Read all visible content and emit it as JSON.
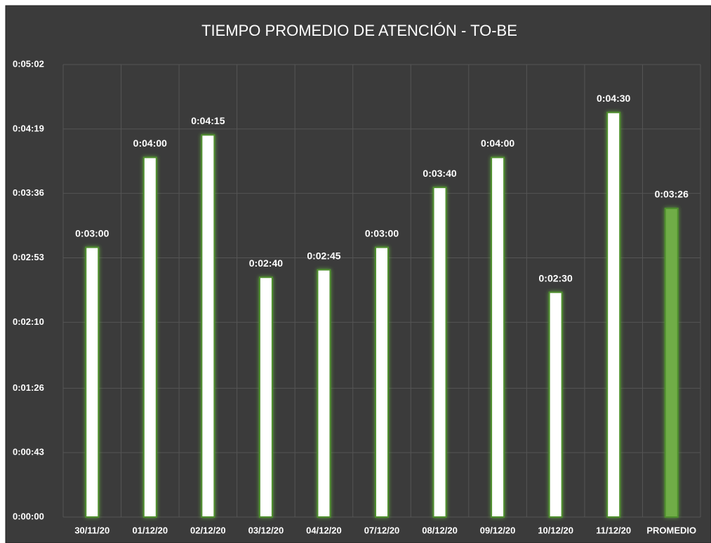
{
  "chart_data": {
    "type": "bar",
    "title": "TIEMPO PROMEDIO DE ATENCIÓN -  TO-BE",
    "categories": [
      "30/11/20",
      "01/12/20",
      "02/12/20",
      "03/12/20",
      "04/12/20",
      "07/12/20",
      "08/12/20",
      "09/12/20",
      "10/12/20",
      "11/12/20",
      "PROMEDIO"
    ],
    "values": [
      180,
      240,
      255,
      160,
      165,
      180,
      220,
      240,
      150,
      270,
      206
    ],
    "value_labels": [
      "0:03:00",
      "0:04:00",
      "0:04:15",
      "0:02:40",
      "0:02:45",
      "0:03:00",
      "0:03:40",
      "0:04:00",
      "0:02:30",
      "0:04:30",
      "0:03:26"
    ],
    "colors": [
      "#ffffff",
      "#ffffff",
      "#ffffff",
      "#ffffff",
      "#ffffff",
      "#ffffff",
      "#ffffff",
      "#ffffff",
      "#ffffff",
      "#ffffff",
      "#70ad47"
    ],
    "ylim": [
      0,
      302
    ],
    "yticks": [
      {
        "value": 0,
        "label": "0:00:00"
      },
      {
        "value": 43,
        "label": "0:00:43"
      },
      {
        "value": 86,
        "label": "0:01:26"
      },
      {
        "value": 130,
        "label": "0:02:10"
      },
      {
        "value": 173,
        "label": "0:02:53"
      },
      {
        "value": 216,
        "label": "0:03:36"
      },
      {
        "value": 259,
        "label": "0:04:19"
      },
      {
        "value": 302,
        "label": "0:05:02"
      }
    ],
    "grid": true
  }
}
